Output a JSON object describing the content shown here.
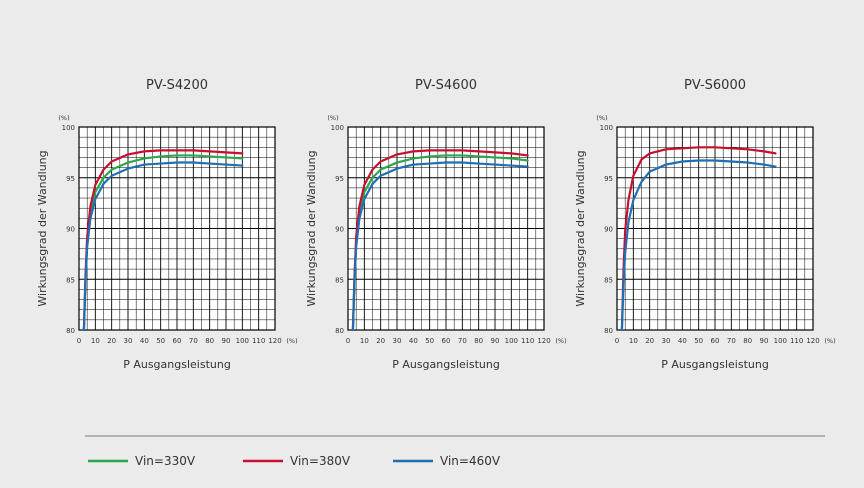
{
  "chart_data": [
    {
      "type": "line",
      "title": "PV-S4200",
      "xlabel": "P Ausgangsleistung",
      "ylabel": "Wirkungsgrad der Wandlung",
      "x_unit": "(%)",
      "y_unit": "(%)",
      "xlim": [
        0,
        120
      ],
      "ylim": [
        80,
        100
      ],
      "x_ticks": [
        "0",
        "10",
        "20",
        "30",
        "40",
        "50",
        "60",
        "70",
        "80",
        "90",
        "100",
        "110",
        "120"
      ],
      "y_ticks": [
        "80",
        "85",
        "90",
        "95",
        "100"
      ],
      "grid": true,
      "series": [
        {
          "name": "Vin=330V",
          "color": "#2aa84a",
          "points": [
            [
              3,
              80.0
            ],
            [
              4,
              85.0
            ],
            [
              5,
              88.5
            ],
            [
              7,
              91.5
            ],
            [
              10,
              93.6
            ],
            [
              15,
              95.0
            ],
            [
              20,
              95.8
            ],
            [
              30,
              96.5
            ],
            [
              40,
              96.9
            ],
            [
              50,
              97.1
            ],
            [
              60,
              97.2
            ],
            [
              70,
              97.2
            ],
            [
              80,
              97.1
            ],
            [
              90,
              97.0
            ],
            [
              100,
              96.9
            ]
          ]
        },
        {
          "name": "Vin=380V",
          "color": "#c8102e",
          "points": [
            [
              3,
              80.0
            ],
            [
              4,
              85.5
            ],
            [
              5,
              89.2
            ],
            [
              7,
              92.2
            ],
            [
              10,
              94.3
            ],
            [
              15,
              95.8
            ],
            [
              20,
              96.6
            ],
            [
              30,
              97.3
            ],
            [
              40,
              97.6
            ],
            [
              50,
              97.7
            ],
            [
              60,
              97.7
            ],
            [
              70,
              97.7
            ],
            [
              80,
              97.6
            ],
            [
              90,
              97.5
            ],
            [
              100,
              97.4
            ]
          ]
        },
        {
          "name": "Vin=460V",
          "color": "#1f6fb5",
          "points": [
            [
              3,
              80.0
            ],
            [
              4,
              85.0
            ],
            [
              5,
              88.2
            ],
            [
              7,
              91.0
            ],
            [
              10,
              92.9
            ],
            [
              15,
              94.4
            ],
            [
              20,
              95.2
            ],
            [
              30,
              95.9
            ],
            [
              40,
              96.3
            ],
            [
              50,
              96.4
            ],
            [
              60,
              96.5
            ],
            [
              70,
              96.5
            ],
            [
              80,
              96.4
            ],
            [
              90,
              96.3
            ],
            [
              100,
              96.2
            ]
          ]
        }
      ]
    },
    {
      "type": "line",
      "title": "PV-S4600",
      "xlabel": "P Ausgangsleistung",
      "ylabel": "Wirkungsgrad der Wandlung",
      "x_unit": "(%)",
      "y_unit": "(%)",
      "xlim": [
        0,
        120
      ],
      "ylim": [
        80,
        100
      ],
      "x_ticks": [
        "0",
        "10",
        "20",
        "30",
        "40",
        "50",
        "60",
        "70",
        "80",
        "90",
        "100",
        "110",
        "120"
      ],
      "y_ticks": [
        "80",
        "85",
        "90",
        "95",
        "100"
      ],
      "grid": true,
      "series": [
        {
          "name": "Vin=330V",
          "color": "#2aa84a",
          "points": [
            [
              3,
              80.0
            ],
            [
              4,
              85.0
            ],
            [
              5,
              88.5
            ],
            [
              7,
              91.5
            ],
            [
              10,
              93.6
            ],
            [
              15,
              95.0
            ],
            [
              20,
              95.8
            ],
            [
              30,
              96.5
            ],
            [
              40,
              96.9
            ],
            [
              50,
              97.1
            ],
            [
              60,
              97.2
            ],
            [
              70,
              97.2
            ],
            [
              80,
              97.1
            ],
            [
              90,
              97.0
            ],
            [
              100,
              96.9
            ],
            [
              110,
              96.7
            ]
          ]
        },
        {
          "name": "Vin=380V",
          "color": "#c8102e",
          "points": [
            [
              3,
              80.0
            ],
            [
              4,
              85.5
            ],
            [
              5,
              89.2
            ],
            [
              7,
              92.2
            ],
            [
              10,
              94.3
            ],
            [
              15,
              95.8
            ],
            [
              20,
              96.6
            ],
            [
              30,
              97.3
            ],
            [
              40,
              97.6
            ],
            [
              50,
              97.7
            ],
            [
              60,
              97.7
            ],
            [
              70,
              97.7
            ],
            [
              80,
              97.6
            ],
            [
              90,
              97.5
            ],
            [
              100,
              97.4
            ],
            [
              110,
              97.2
            ]
          ]
        },
        {
          "name": "Vin=460V",
          "color": "#1f6fb5",
          "points": [
            [
              3,
              80.0
            ],
            [
              4,
              85.0
            ],
            [
              5,
              88.2
            ],
            [
              7,
              91.0
            ],
            [
              10,
              92.9
            ],
            [
              15,
              94.4
            ],
            [
              20,
              95.2
            ],
            [
              30,
              95.9
            ],
            [
              40,
              96.3
            ],
            [
              50,
              96.4
            ],
            [
              60,
              96.5
            ],
            [
              70,
              96.5
            ],
            [
              80,
              96.4
            ],
            [
              90,
              96.3
            ],
            [
              100,
              96.2
            ],
            [
              110,
              96.1
            ]
          ]
        }
      ]
    },
    {
      "type": "line",
      "title": "PV-S6000",
      "xlabel": "P Ausgangsleistung",
      "ylabel": "Wirkungsgrad der Wandlung",
      "x_unit": "(%)",
      "y_unit": "(%)",
      "xlim": [
        0,
        120
      ],
      "ylim": [
        80,
        100
      ],
      "x_ticks": [
        "0",
        "10",
        "20",
        "30",
        "40",
        "50",
        "60",
        "70",
        "80",
        "90",
        "100",
        "110",
        "120"
      ],
      "y_ticks": [
        "80",
        "85",
        "90",
        "95",
        "100"
      ],
      "grid": true,
      "series": [
        {
          "name": "Vin=380V",
          "color": "#c8102e",
          "points": [
            [
              3,
              80.0
            ],
            [
              4,
              86.0
            ],
            [
              5,
              89.8
            ],
            [
              7,
              92.8
            ],
            [
              10,
              95.2
            ],
            [
              15,
              96.8
            ],
            [
              20,
              97.4
            ],
            [
              30,
              97.8
            ],
            [
              40,
              97.9
            ],
            [
              50,
              98.0
            ],
            [
              60,
              98.0
            ],
            [
              70,
              97.9
            ],
            [
              80,
              97.8
            ],
            [
              90,
              97.6
            ],
            [
              97,
              97.4
            ]
          ]
        },
        {
          "name": "Vin=460V",
          "color": "#1f6fb5",
          "points": [
            [
              3,
              80.0
            ],
            [
              4,
              84.5
            ],
            [
              5,
              87.6
            ],
            [
              7,
              90.6
            ],
            [
              10,
              92.8
            ],
            [
              15,
              94.6
            ],
            [
              20,
              95.6
            ],
            [
              30,
              96.3
            ],
            [
              40,
              96.6
            ],
            [
              50,
              96.7
            ],
            [
              60,
              96.7
            ],
            [
              70,
              96.6
            ],
            [
              80,
              96.5
            ],
            [
              90,
              96.3
            ],
            [
              97,
              96.1
            ]
          ]
        }
      ]
    }
  ],
  "legend": [
    {
      "label": "Vin=330V",
      "color": "#2aa84a"
    },
    {
      "label": "Vin=380V",
      "color": "#c8102e"
    },
    {
      "label": "Vin=460V",
      "color": "#1f6fb5"
    }
  ]
}
